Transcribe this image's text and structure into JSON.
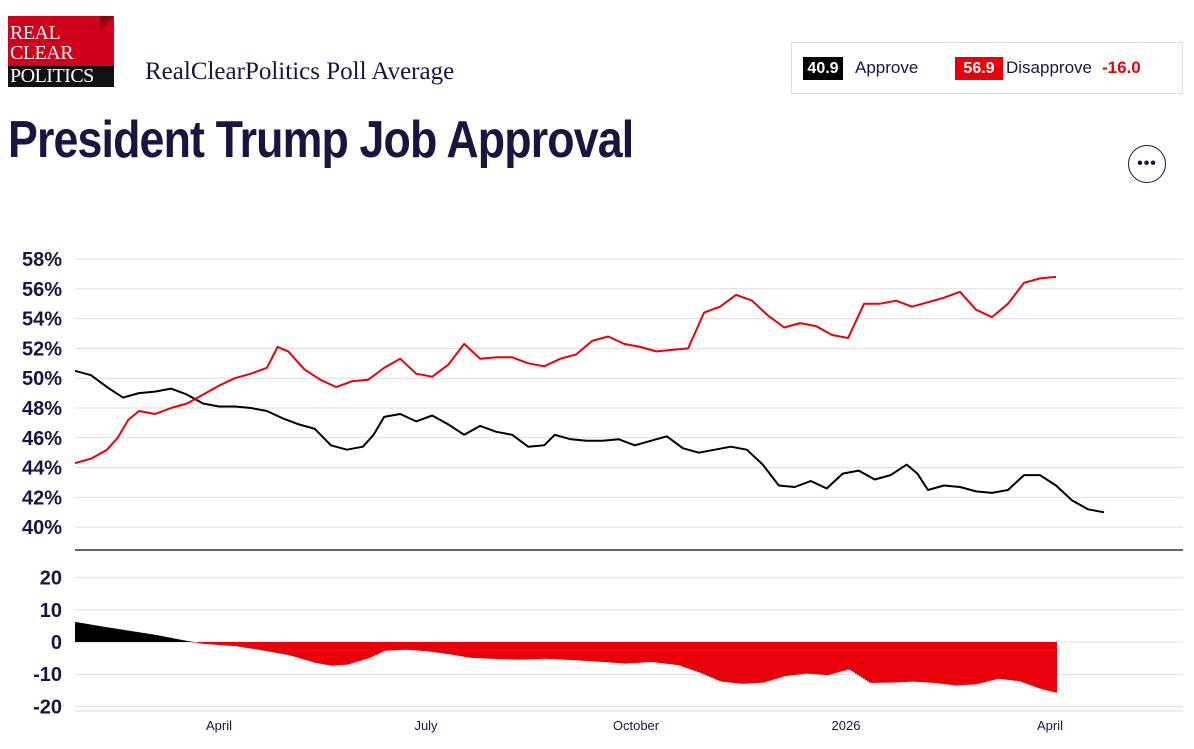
{
  "header": {
    "logo_lines": [
      "REAL",
      "CLEAR",
      "POLITICS"
    ],
    "subtitle": "RealClearPolitics Poll Average",
    "title": "President Trump Job Approval",
    "more_label": "•••"
  },
  "legend": {
    "approve_value": "40.9",
    "approve_label": "Approve",
    "disapprove_value": "56.9",
    "disapprove_label": "Disapprove",
    "spread": "-16.0"
  },
  "colors": {
    "approve": "#000000",
    "disapprove": "#e8000b",
    "text": "#1c1340"
  },
  "chart_data": [
    {
      "type": "line",
      "x_axis_labels": [
        "April",
        "July",
        "October",
        "2026",
        "April"
      ],
      "y_ticks": [
        "58%",
        "56%",
        "54%",
        "52%",
        "50%",
        "48%",
        "46%",
        "44%",
        "42%",
        "40%"
      ],
      "ylim": [
        39.6,
        58.4
      ],
      "grid": true,
      "series": [
        {
          "name": "Approve",
          "color": "#000000",
          "points": [
            [
              0,
              50.5
            ],
            [
              3,
              50.2
            ],
            [
              6,
              49.4
            ],
            [
              9,
              48.7
            ],
            [
              12,
              49.0
            ],
            [
              15,
              49.1
            ],
            [
              18,
              49.3
            ],
            [
              21,
              48.9
            ],
            [
              24,
              48.3
            ],
            [
              27,
              48.1
            ],
            [
              30,
              48.1
            ],
            [
              33,
              48.0
            ],
            [
              36,
              47.8
            ],
            [
              39,
              47.3
            ],
            [
              42,
              46.9
            ],
            [
              45,
              46.6
            ],
            [
              48,
              45.5
            ],
            [
              51,
              45.2
            ],
            [
              54,
              45.4
            ],
            [
              56,
              46.2
            ],
            [
              58,
              47.4
            ],
            [
              61,
              47.6
            ],
            [
              64,
              47.1
            ],
            [
              67,
              47.5
            ],
            [
              70,
              46.9
            ],
            [
              73,
              46.2
            ],
            [
              76,
              46.8
            ],
            [
              79,
              46.4
            ],
            [
              82,
              46.2
            ],
            [
              85,
              45.4
            ],
            [
              88,
              45.5
            ],
            [
              90,
              46.2
            ],
            [
              93,
              45.9
            ],
            [
              96,
              45.8
            ],
            [
              99,
              45.8
            ],
            [
              102,
              45.9
            ],
            [
              105,
              45.5
            ],
            [
              108,
              45.8
            ],
            [
              111,
              46.1
            ],
            [
              114,
              45.3
            ],
            [
              117,
              45.0
            ],
            [
              120,
              45.2
            ],
            [
              123,
              45.4
            ],
            [
              126,
              45.2
            ],
            [
              129,
              44.2
            ],
            [
              132,
              42.8
            ],
            [
              135,
              42.7
            ],
            [
              138,
              43.1
            ],
            [
              141,
              42.6
            ],
            [
              144,
              43.6
            ],
            [
              147,
              43.8
            ],
            [
              150,
              43.2
            ],
            [
              153,
              43.5
            ],
            [
              156,
              44.2
            ],
            [
              158,
              43.6
            ],
            [
              160,
              42.5
            ],
            [
              163,
              42.8
            ],
            [
              166,
              42.7
            ],
            [
              169,
              42.4
            ],
            [
              172,
              42.3
            ],
            [
              175,
              42.5
            ],
            [
              178,
              43.5
            ],
            [
              181,
              43.5
            ],
            [
              184,
              42.8
            ],
            [
              187,
              41.8
            ],
            [
              190,
              41.2
            ],
            [
              193,
              41.0
            ]
          ]
        },
        {
          "name": "Disapprove",
          "color": "#e8000b",
          "points": [
            [
              0,
              44.3
            ],
            [
              3,
              44.6
            ],
            [
              6,
              45.2
            ],
            [
              8,
              46.0
            ],
            [
              10,
              47.2
            ],
            [
              12,
              47.8
            ],
            [
              15,
              47.6
            ],
            [
              18,
              48.0
            ],
            [
              21,
              48.3
            ],
            [
              24,
              48.9
            ],
            [
              27,
              49.5
            ],
            [
              30,
              50.0
            ],
            [
              33,
              50.3
            ],
            [
              36,
              50.7
            ],
            [
              38,
              52.1
            ],
            [
              40,
              51.8
            ],
            [
              43,
              50.6
            ],
            [
              46,
              49.9
            ],
            [
              49,
              49.4
            ],
            [
              52,
              49.8
            ],
            [
              55,
              49.9
            ],
            [
              58,
              50.7
            ],
            [
              61,
              51.3
            ],
            [
              64,
              50.3
            ],
            [
              67,
              50.1
            ],
            [
              70,
              50.9
            ],
            [
              73,
              52.3
            ],
            [
              76,
              51.3
            ],
            [
              79,
              51.4
            ],
            [
              82,
              51.4
            ],
            [
              85,
              51.0
            ],
            [
              88,
              50.8
            ],
            [
              91,
              51.3
            ],
            [
              94,
              51.6
            ],
            [
              97,
              52.5
            ],
            [
              100,
              52.8
            ],
            [
              103,
              52.3
            ],
            [
              106,
              52.1
            ],
            [
              109,
              51.8
            ],
            [
              112,
              51.9
            ],
            [
              115,
              52.0
            ],
            [
              118,
              54.4
            ],
            [
              121,
              54.8
            ],
            [
              124,
              55.6
            ],
            [
              127,
              55.2
            ],
            [
              130,
              54.2
            ],
            [
              133,
              53.4
            ],
            [
              136,
              53.7
            ],
            [
              139,
              53.5
            ],
            [
              142,
              52.9
            ],
            [
              145,
              52.7
            ],
            [
              148,
              55.0
            ],
            [
              151,
              55.0
            ],
            [
              154,
              55.2
            ],
            [
              157,
              54.8
            ],
            [
              160,
              55.1
            ],
            [
              163,
              55.4
            ],
            [
              166,
              55.8
            ],
            [
              169,
              54.6
            ],
            [
              172,
              54.1
            ],
            [
              175,
              55.0
            ],
            [
              178,
              56.4
            ],
            [
              181,
              56.7
            ],
            [
              184,
              56.8
            ]
          ]
        }
      ]
    },
    {
      "type": "bar",
      "name": "Spread",
      "y_ticks": [
        "20",
        "10",
        "0",
        "-10",
        "-20"
      ],
      "ylim": [
        -22,
        22
      ],
      "positive_color": "#000000",
      "negative_color": "#e8000b",
      "points": [
        [
          0,
          6.2
        ],
        [
          5,
          4.8
        ],
        [
          10,
          3.5
        ],
        [
          15,
          2.2
        ],
        [
          20,
          0.6
        ],
        [
          24,
          -0.6
        ],
        [
          30,
          -1.3
        ],
        [
          35,
          -2.6
        ],
        [
          40,
          -4.1
        ],
        [
          45,
          -6.5
        ],
        [
          48,
          -7.4
        ],
        [
          51,
          -7.0
        ],
        [
          55,
          -5.0
        ],
        [
          58,
          -2.7
        ],
        [
          62,
          -2.4
        ],
        [
          66,
          -2.9
        ],
        [
          70,
          -3.8
        ],
        [
          74,
          -4.9
        ],
        [
          78,
          -5.2
        ],
        [
          83,
          -5.5
        ],
        [
          88,
          -5.2
        ],
        [
          93,
          -5.6
        ],
        [
          98,
          -6.1
        ],
        [
          103,
          -6.7
        ],
        [
          108,
          -6.2
        ],
        [
          113,
          -7.2
        ],
        [
          117,
          -9.5
        ],
        [
          121,
          -12.3
        ],
        [
          125,
          -13.0
        ],
        [
          129,
          -12.6
        ],
        [
          133,
          -10.6
        ],
        [
          137,
          -9.8
        ],
        [
          141,
          -10.3
        ],
        [
          145,
          -8.5
        ],
        [
          149,
          -12.7
        ],
        [
          153,
          -12.6
        ],
        [
          157,
          -12.3
        ],
        [
          161,
          -12.7
        ],
        [
          165,
          -13.5
        ],
        [
          169,
          -13.1
        ],
        [
          173,
          -11.4
        ],
        [
          177,
          -12.2
        ],
        [
          181,
          -14.6
        ],
        [
          184,
          -15.8
        ]
      ]
    }
  ]
}
